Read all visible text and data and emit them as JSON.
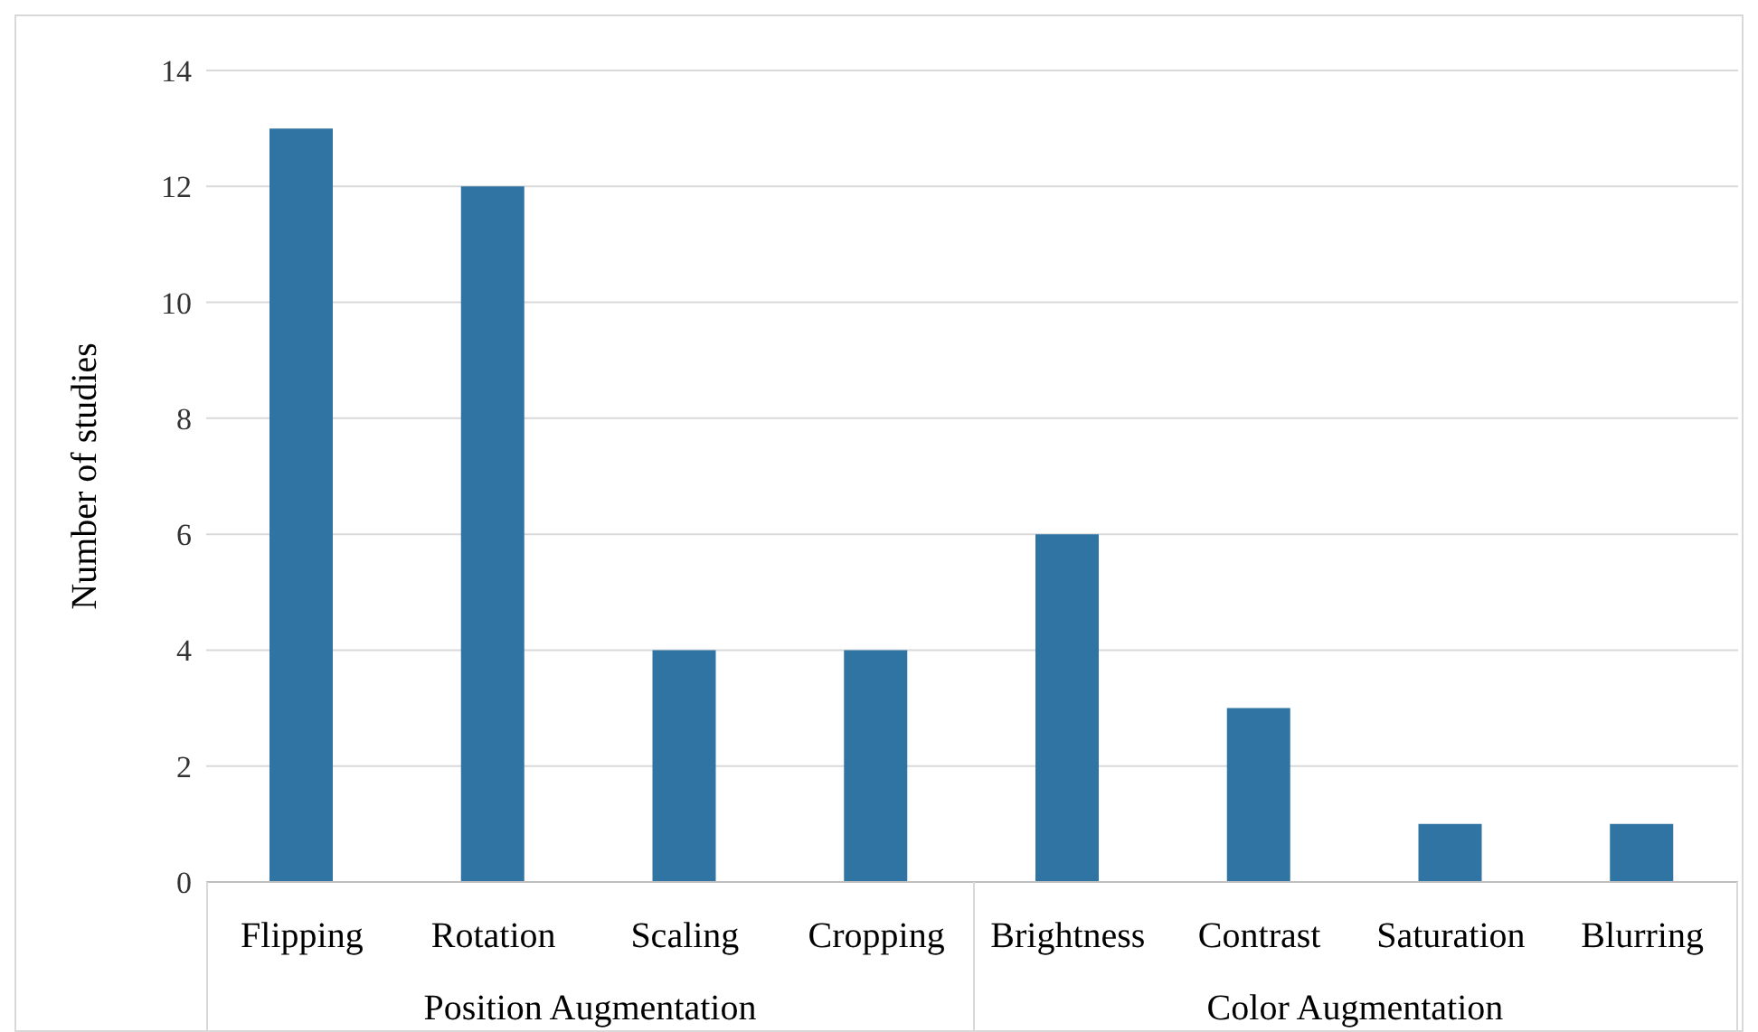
{
  "chart_data": {
    "type": "bar",
    "ylabel": "Number of studies",
    "categories": [
      "Flipping",
      "Rotation",
      "Scaling",
      "Cropping",
      "Brightness",
      "Contrast",
      "Saturation",
      "Blurring"
    ],
    "values": [
      13,
      12,
      4,
      4,
      6,
      3,
      1,
      1
    ],
    "color": "#3074a4",
    "ylim": [
      0,
      14
    ],
    "yticks": [
      0,
      2,
      4,
      6,
      8,
      10,
      12,
      14
    ],
    "grid": "y",
    "annotations": [
      "Position Augmentation",
      "Color Augmentation"
    ]
  }
}
